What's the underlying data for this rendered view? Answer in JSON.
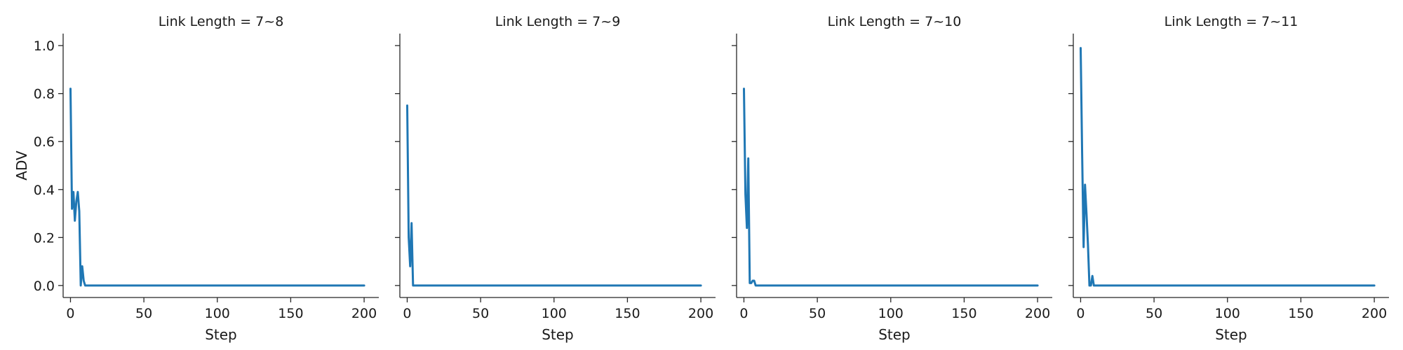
{
  "chart_data": [
    {
      "type": "line",
      "title": "Link Length = 7~8",
      "xlabel": "Step",
      "ylabel": "ADV",
      "xlim": [
        -5,
        210
      ],
      "ylim": [
        -0.05,
        1.05
      ],
      "xticks": [
        0,
        50,
        100,
        150,
        200
      ],
      "yticks": [
        0.0,
        0.2,
        0.4,
        0.6,
        0.8,
        1.0
      ],
      "series": [
        {
          "x": [
            0,
            1,
            2,
            3,
            4,
            5,
            6,
            7,
            8,
            9,
            10,
            15,
            50,
            100,
            150,
            200
          ],
          "y": [
            0.82,
            0.32,
            0.39,
            0.27,
            0.35,
            0.39,
            0.31,
            0.0,
            0.08,
            0.02,
            0.0,
            0.0,
            0.0,
            0.0,
            0.0,
            0.0
          ]
        }
      ]
    },
    {
      "type": "line",
      "title": "Link Length = 7~9",
      "xlabel": "Step",
      "ylabel": "",
      "xlim": [
        -5,
        210
      ],
      "ylim": [
        -0.05,
        1.05
      ],
      "xticks": [
        0,
        50,
        100,
        150,
        200
      ],
      "yticks": [
        0.0,
        0.2,
        0.4,
        0.6,
        0.8,
        1.0
      ],
      "series": [
        {
          "x": [
            0,
            1,
            2,
            3,
            4,
            5,
            10,
            50,
            100,
            150,
            200
          ],
          "y": [
            0.75,
            0.2,
            0.08,
            0.26,
            0.0,
            0.0,
            0.0,
            0.0,
            0.0,
            0.0,
            0.0
          ]
        }
      ]
    },
    {
      "type": "line",
      "title": "Link Length = 7~10",
      "xlabel": "Step",
      "ylabel": "",
      "xlim": [
        -5,
        210
      ],
      "ylim": [
        -0.05,
        1.05
      ],
      "xticks": [
        0,
        50,
        100,
        150,
        200
      ],
      "yticks": [
        0.0,
        0.2,
        0.4,
        0.6,
        0.8,
        1.0
      ],
      "series": [
        {
          "x": [
            0,
            1,
            2,
            3,
            4,
            5,
            6,
            7,
            8,
            10,
            50,
            100,
            150,
            200
          ],
          "y": [
            0.82,
            0.38,
            0.24,
            0.53,
            0.01,
            0.01,
            0.02,
            0.02,
            0.0,
            0.0,
            0.0,
            0.0,
            0.0,
            0.0
          ]
        }
      ]
    },
    {
      "type": "line",
      "title": "Link Length = 7~11",
      "xlabel": "Step",
      "ylabel": "",
      "xlim": [
        -5,
        210
      ],
      "ylim": [
        -0.05,
        1.05
      ],
      "xticks": [
        0,
        50,
        100,
        150,
        200
      ],
      "yticks": [
        0.0,
        0.2,
        0.4,
        0.6,
        0.8,
        1.0
      ],
      "series": [
        {
          "x": [
            0,
            1,
            2,
            3,
            4,
            5,
            6,
            7,
            8,
            9,
            10,
            50,
            100,
            150,
            200
          ],
          "y": [
            0.99,
            0.55,
            0.16,
            0.42,
            0.3,
            0.17,
            0.0,
            0.0,
            0.04,
            0.0,
            0.0,
            0.0,
            0.0,
            0.0,
            0.0
          ]
        }
      ]
    }
  ],
  "colors": {
    "line": "#1f77b4",
    "axis": "#262626"
  }
}
